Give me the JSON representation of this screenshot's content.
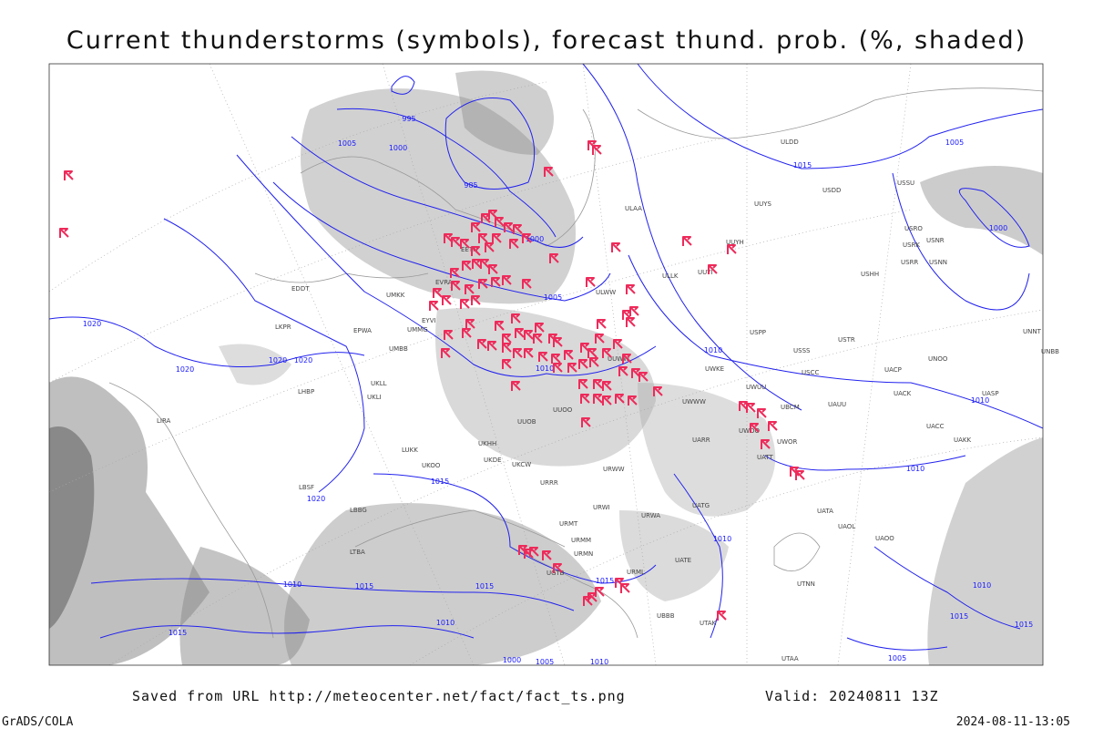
{
  "title": "Current thunderstorms (symbols), forecast thund. prob. (%, shaded)",
  "footer": {
    "saved_from": "Saved from URL http://meteocenter.net/fact/fact_ts.png",
    "valid": "Valid: 20240811 13Z",
    "software": "GrADS/COLA",
    "timestamp": "2024-08-11-13:05"
  },
  "isobar_labels": [
    995,
    1000,
    1005,
    985,
    1000,
    1005,
    1020,
    1020,
    1020,
    1020,
    1010,
    1015,
    1005,
    1000,
    1010,
    1010,
    1010,
    1015,
    1020,
    1010,
    1015,
    1015,
    1010,
    1015,
    1015,
    1010,
    1000,
    1005,
    1010,
    1015,
    1015,
    1005,
    1010
  ],
  "station_labels": [
    "ULAA",
    "ULLK",
    "ULWW",
    "UUYS",
    "UUYH",
    "UUYI",
    "ULDD",
    "USDD",
    "USSU",
    "USRO",
    "USRK",
    "USNR",
    "USRR",
    "USNN",
    "USHH",
    "UNNT",
    "UNBB",
    "USPP",
    "USSS",
    "USTR",
    "USCC",
    "UACP",
    "UNOO",
    "UWKE",
    "UWUU",
    "UWWW",
    "UBCM",
    "UAUU",
    "UACK",
    "UASP",
    "UACC",
    "UAKK",
    "UWOO",
    "UWOR",
    "UATT",
    "UARR",
    "UUOO",
    "UUOB",
    "UKHH",
    "UKDE",
    "UKCW",
    "URRR",
    "URWW",
    "URWI",
    "URWA",
    "UATG",
    "UATA",
    "UAOL",
    "UAOO",
    "UATE",
    "URMT",
    "URMM",
    "URMN",
    "URML",
    "UGTB",
    "UBBB",
    "UTAK",
    "UTNN",
    "UTAA",
    "UKOO",
    "LUKK",
    "LBSF",
    "LBBG",
    "LTBA",
    "LIRA",
    "EDDT",
    "UMKK",
    "EVRA",
    "EYVI",
    "UMMG",
    "UMBB",
    "EPWA",
    "LKPR",
    "LHBP",
    "UKLL",
    "UKLI",
    "EETN",
    "UUWW"
  ]
}
